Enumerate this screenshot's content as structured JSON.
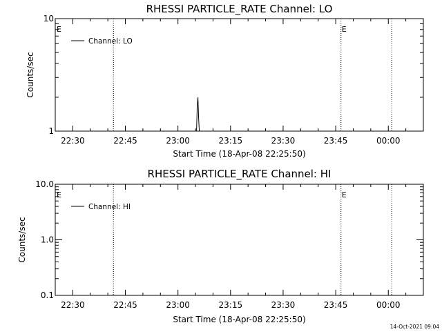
{
  "footer_timestamp": "14-Oct-2021 09:04",
  "chart_data": [
    {
      "type": "line",
      "title": "RHESSI PARTICLE_RATE Channel: LO",
      "xlabel": "Start Time (18-Apr-08 22:25:50)",
      "ylabel": "Counts/sec",
      "yscale": "log",
      "ylim": [
        1,
        10
      ],
      "xlim_minutes": [
        -5,
        100
      ],
      "x_ticks": [
        {
          "label": "22:30",
          "minutes": 0
        },
        {
          "label": "22:45",
          "minutes": 15
        },
        {
          "label": "23:00",
          "minutes": 30
        },
        {
          "label": "23:15",
          "minutes": 45
        },
        {
          "label": "23:30",
          "minutes": 60
        },
        {
          "label": "23:45",
          "minutes": 75
        },
        {
          "label": "00:00",
          "minutes": 90
        }
      ],
      "y_ticks": [
        {
          "label": "10",
          "value": 10
        },
        {
          "label": "1",
          "value": 1
        }
      ],
      "legend": {
        "label": "Channel: LO",
        "position": "top-left"
      },
      "event_flags": [
        {
          "label": "E",
          "minutes": -5
        },
        {
          "label": "E",
          "minutes": 76.5
        }
      ],
      "marker_lines_minutes": [
        11.6,
        76.5,
        91
      ],
      "series": [
        {
          "name": "Channel: LO",
          "x": [
            35.0,
            35.3,
            35.5,
            35.7,
            35.9,
            36.1,
            36.3
          ],
          "y": [
            1.0,
            1.0,
            1.7,
            2.0,
            1.3,
            1.0,
            1.0
          ]
        }
      ],
      "grid": false
    },
    {
      "type": "line",
      "title": "RHESSI PARTICLE_RATE Channel: HI",
      "xlabel": "Start Time (18-Apr-08 22:25:50)",
      "ylabel": "Counts/sec",
      "yscale": "log",
      "ylim": [
        0.1,
        10
      ],
      "xlim_minutes": [
        -5,
        100
      ],
      "x_ticks": [
        {
          "label": "22:30",
          "minutes": 0
        },
        {
          "label": "22:45",
          "minutes": 15
        },
        {
          "label": "23:00",
          "minutes": 30
        },
        {
          "label": "23:15",
          "minutes": 45
        },
        {
          "label": "23:30",
          "minutes": 60
        },
        {
          "label": "23:45",
          "minutes": 75
        },
        {
          "label": "00:00",
          "minutes": 90
        }
      ],
      "y_ticks": [
        {
          "label": "10.0",
          "value": 10
        },
        {
          "label": "1.0",
          "value": 1
        },
        {
          "label": "0.1",
          "value": 0.1
        }
      ],
      "legend": {
        "label": "Channel: HI",
        "position": "top-left"
      },
      "event_flags": [
        {
          "label": "E",
          "minutes": -5
        },
        {
          "label": "E",
          "minutes": 76.5
        }
      ],
      "marker_lines_minutes": [
        11.6,
        76.5,
        91
      ],
      "series": [
        {
          "name": "Channel: HI",
          "x": [],
          "y": []
        }
      ],
      "grid": false
    }
  ]
}
